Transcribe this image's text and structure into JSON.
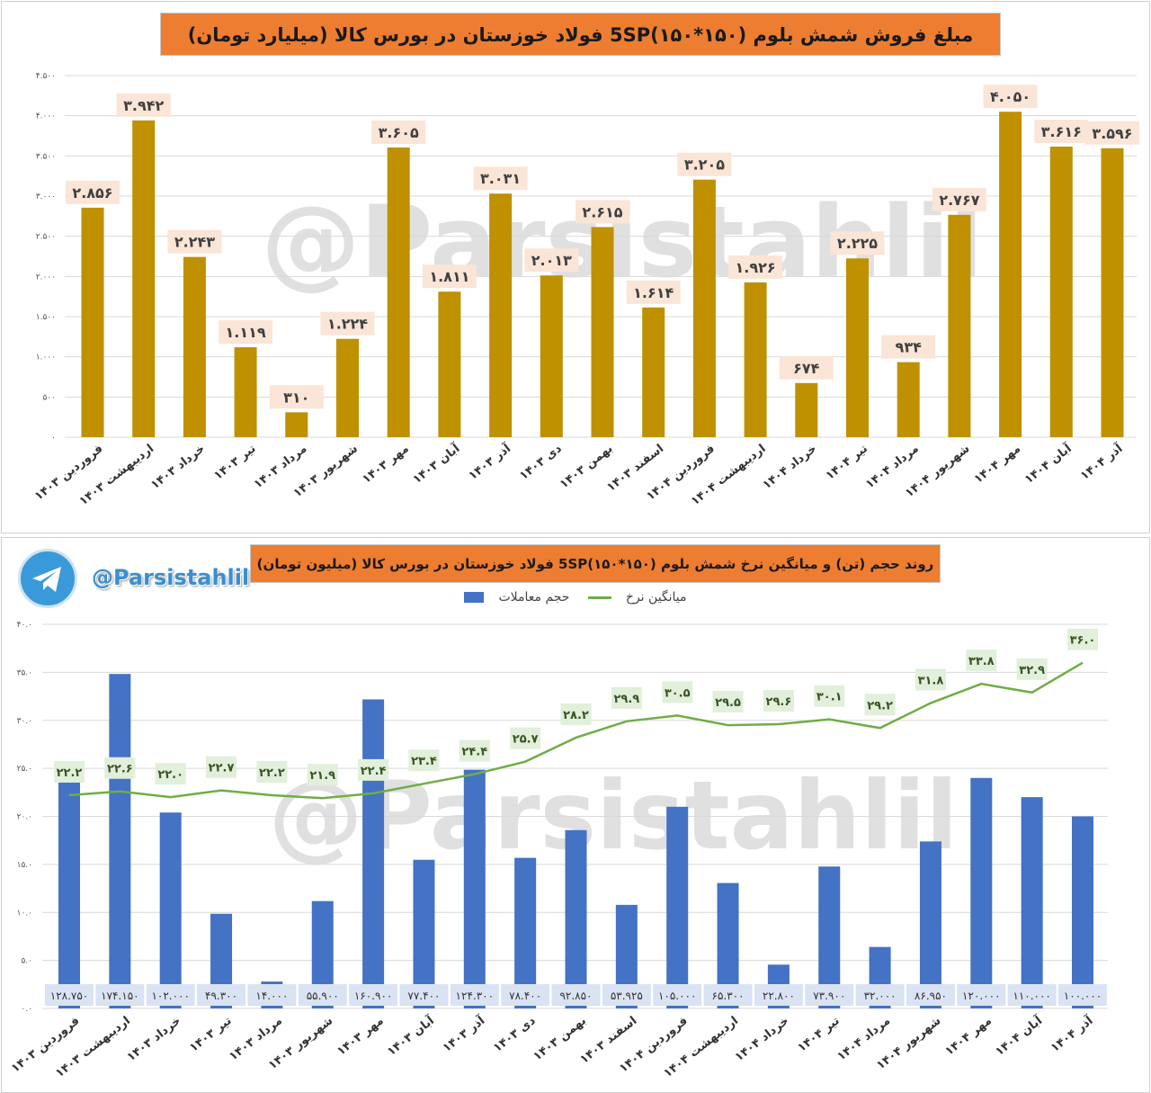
{
  "watermark": "@Parsistahlil",
  "colors": {
    "sales_bar": "#bf9000",
    "sales_label_bg": "#fbe5d6",
    "volume_bar": "#4472c4",
    "volume_label_bg": "#dae3f3",
    "price_line": "#70ad47",
    "price_label_bg": "#e2efda",
    "title_bg": "#ed7d31"
  },
  "telegram": {
    "icon": "telegram-icon",
    "handle": "@Parsistahlil"
  },
  "chart_data": [
    {
      "type": "bar",
      "title": "مبلغ فروش  شمش بلوم (۱۵۰*۱۵۰)5SP فولاد خوزستان در بورس کالا (میلیارد تومان)",
      "categories": [
        "فروردین ۱۴۰۳",
        "اردیبهشت ۱۴۰۳",
        "خرداد ۱۴۰۳",
        "تیر ۱۴۰۳",
        "مرداد ۱۴۰۳",
        "شهریور ۱۴۰۳",
        "مهر ۱۴۰۳",
        "آبان ۱۴۰۳",
        "آذر ۱۴۰۳",
        "دی ۱۴۰۳",
        "بهمن ۱۴۰۳",
        "اسفند ۱۴۰۳",
        "فروردین ۱۴۰۴",
        "اردیبهشت ۱۴۰۴",
        "خرداد ۱۴۰۴",
        "تیر ۱۴۰۴",
        "مرداد ۱۴۰۴",
        "شهریور ۱۴۰۴",
        "مهر ۱۴۰۴",
        "آبان ۱۴۰۴",
        "آذر ۱۴۰۴"
      ],
      "values": [
        2856,
        3942,
        2243,
        1119,
        310,
        1224,
        3605,
        1811,
        3031,
        2013,
        2615,
        1614,
        3205,
        1926,
        674,
        2225,
        934,
        2767,
        4050,
        3616,
        3596
      ],
      "ylim": [
        0,
        4500
      ],
      "yticks": [
        0,
        500,
        1000,
        1500,
        2000,
        2500,
        3000,
        3500,
        4000,
        4500
      ],
      "grid": true
    },
    {
      "type": "bar+line",
      "title": "روند حجم (تن) و میانگین نرخ  شمش بلوم (۱۵۰*۱۵۰)5SP فولاد خوزستان در بورس کالا (میلیون تومان)",
      "legend": [
        "میانگین نرخ",
        "حجم معاملات"
      ],
      "legend_position": "top",
      "categories": [
        "فروردین ۱۴۰۳",
        "اردیبهشت ۱۴۰۳",
        "خرداد ۱۴۰۳",
        "تیر ۱۴۰۳",
        "مرداد ۱۴۰۳",
        "شهریور ۱۴۰۳",
        "مهر ۱۴۰۳",
        "آبان ۱۴۰۳",
        "آذر ۱۴۰۳",
        "دی ۱۴۰۳",
        "بهمن ۱۴۰۳",
        "اسفند ۱۴۰۳",
        "فروردین ۱۴۰۴",
        "اردیبهشت ۱۴۰۴",
        "خرداد ۱۴۰۴",
        "تیر ۱۴۰۴",
        "مرداد ۱۴۰۴",
        "شهریور ۱۴۰۴",
        "مهر ۱۴۰۴",
        "آبان ۱۴۰۴",
        "آذر ۱۴۰۴"
      ],
      "series": [
        {
          "name": "حجم معاملات",
          "type": "bar",
          "values": [
            128750,
            174150,
            102000,
            49300,
            14000,
            55900,
            160900,
            77400,
            124300,
            78400,
            92850,
            53925,
            105000,
            65300,
            22800,
            73900,
            32000,
            86950,
            120000,
            110000,
            100000
          ],
          "ylim": [
            0,
            200000
          ]
        },
        {
          "name": "میانگین نرخ",
          "type": "line",
          "values": [
            22.2,
            22.6,
            22.0,
            22.7,
            22.2,
            21.9,
            22.4,
            23.4,
            24.4,
            25.7,
            28.2,
            29.9,
            30.5,
            29.5,
            29.6,
            30.1,
            29.2,
            31.8,
            33.8,
            32.9,
            36.0
          ],
          "ylim": [
            0,
            40
          ]
        }
      ],
      "yticks": [
        0,
        5,
        10,
        15,
        20,
        25,
        30,
        35,
        40
      ],
      "grid": true
    }
  ]
}
